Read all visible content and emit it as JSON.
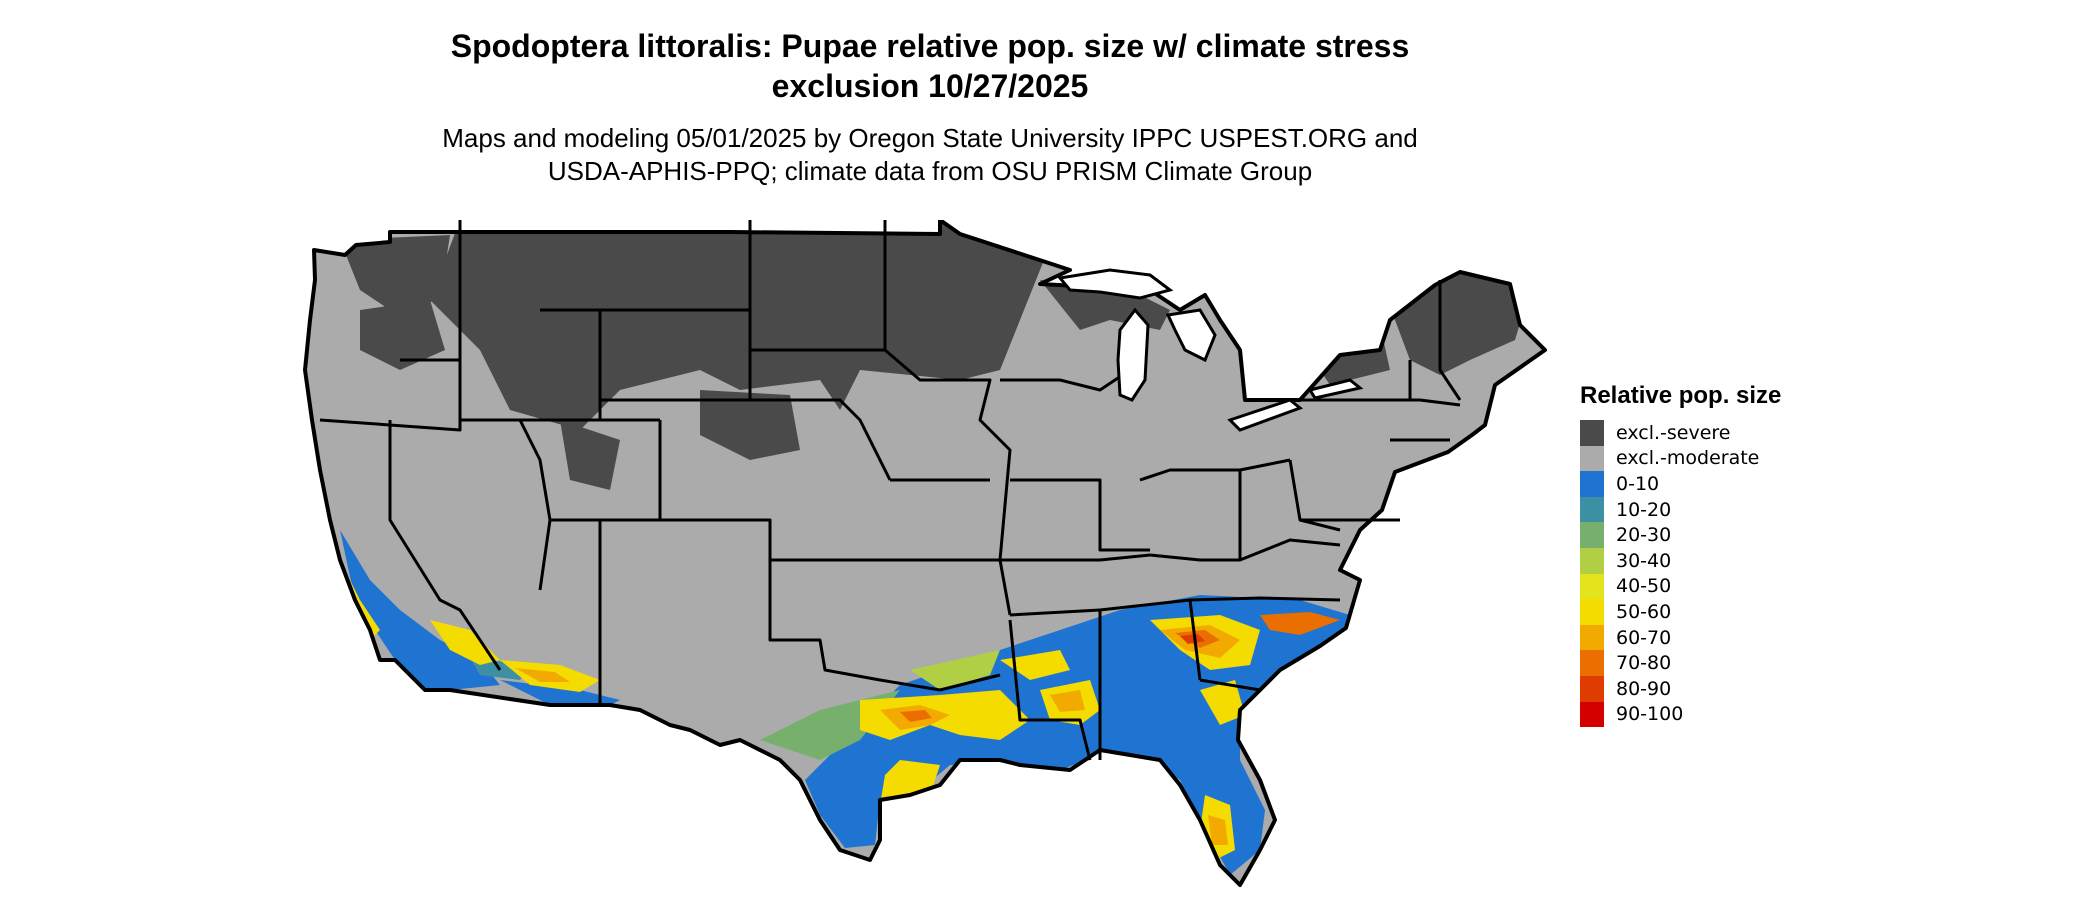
{
  "title_line1": "Spodoptera littoralis: Pupae relative pop. size w/ climate stress",
  "title_line2": "exclusion 10/27/2025",
  "subtitle_line1": "Maps and modeling 05/01/2025 by Oregon State University IPPC USPEST.ORG and",
  "subtitle_line2": "USDA-APHIS-PPQ; climate data from OSU PRISM Climate Group",
  "legend": {
    "title": "Relative pop. size",
    "items": [
      {
        "label": "excl.-severe",
        "color": "#4a4a4a"
      },
      {
        "label": "excl.-moderate",
        "color": "#ababab"
      },
      {
        "label": "0-10",
        "color": "#1f74d1"
      },
      {
        "label": "10-20",
        "color": "#3d8fa4"
      },
      {
        "label": "20-30",
        "color": "#76b06c"
      },
      {
        "label": "30-40",
        "color": "#b0cf44"
      },
      {
        "label": "40-50",
        "color": "#e3e41c"
      },
      {
        "label": "50-60",
        "color": "#f5dc00"
      },
      {
        "label": "60-70",
        "color": "#f2a900"
      },
      {
        "label": "70-80",
        "color": "#eb6f00"
      },
      {
        "label": "80-90",
        "color": "#de3c00"
      },
      {
        "label": "90-100",
        "color": "#d40000"
      }
    ]
  }
}
